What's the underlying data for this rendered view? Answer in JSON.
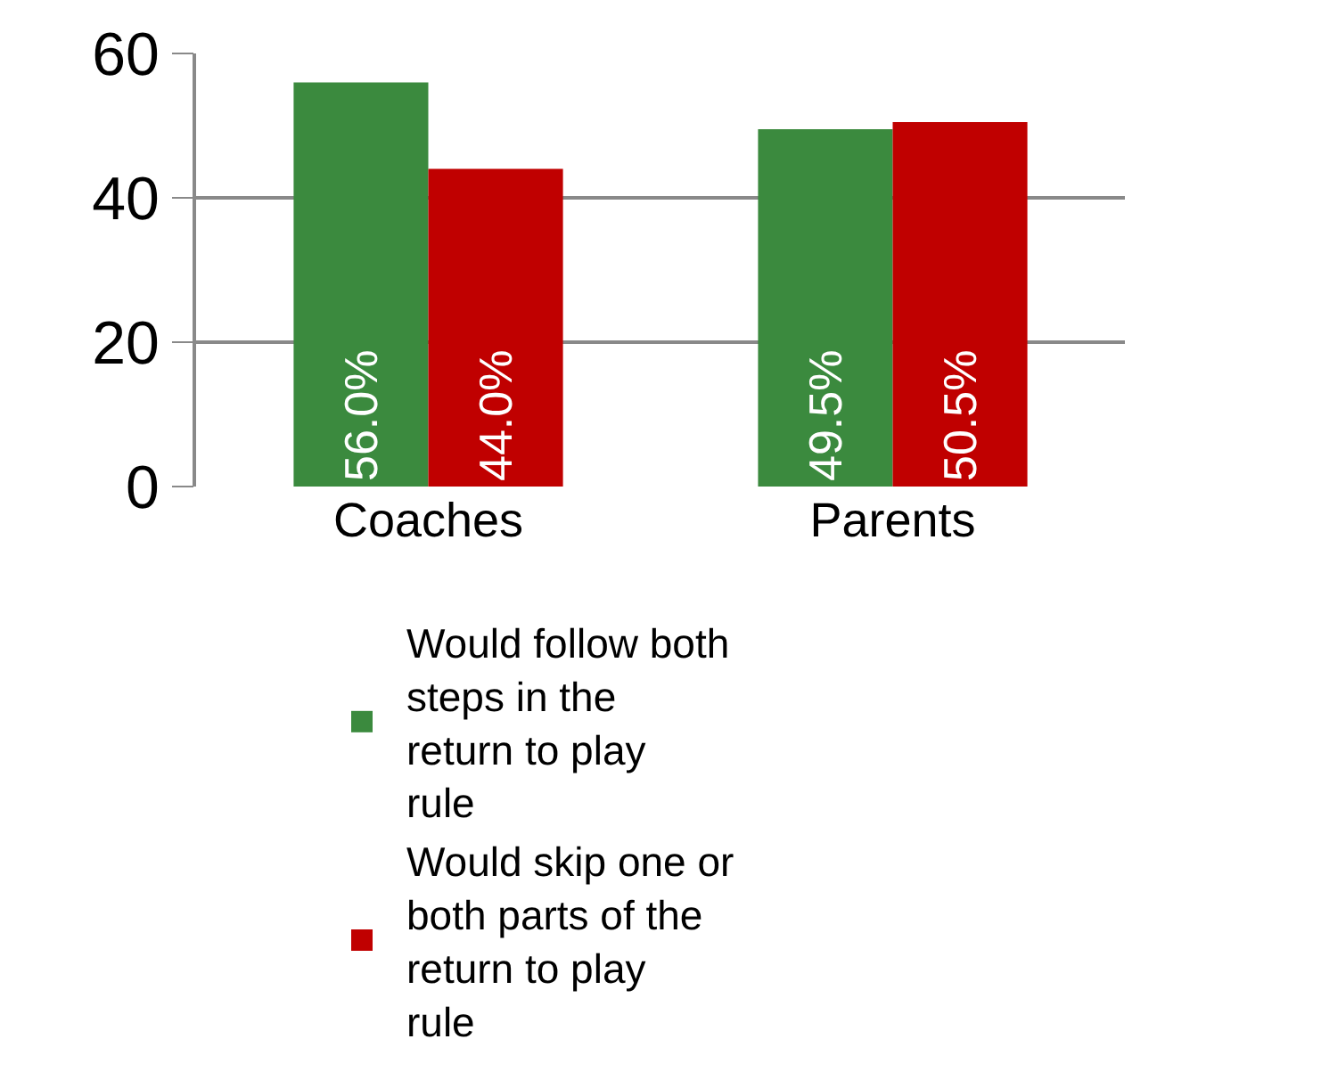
{
  "chart_data": {
    "type": "bar",
    "categories": [
      "Coaches",
      "Parents"
    ],
    "series": [
      {
        "name": "Would follow both steps in the return to play rule",
        "color": "#3b8a3e",
        "values": [
          56.0,
          49.5
        ],
        "value_labels": [
          "56.0%",
          "49.5%"
        ]
      },
      {
        "name": "Would skip one or both parts of the return to play rule",
        "color": "#c00000",
        "values": [
          44.0,
          50.5
        ],
        "value_labels": [
          "44.0%",
          "50.5%"
        ]
      }
    ],
    "ylim": [
      0,
      60
    ],
    "yticks": [
      0,
      20,
      40,
      60
    ],
    "grid": "y",
    "legend": "bottom"
  }
}
